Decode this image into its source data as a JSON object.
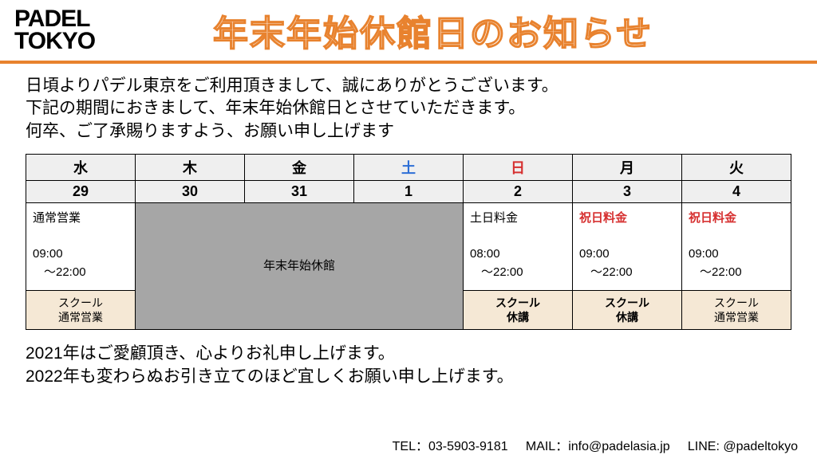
{
  "logo": {
    "line1": "PADEL",
    "line2": "TOKYO"
  },
  "title": "年末年始休館日のお知らせ",
  "intro": {
    "l1": "日頃よりパデル東京をご利用頂きまして、誠にありがとうございます。",
    "l2": "下記の期間におきまして、年末年始休館日とさせていただきます。",
    "l3": "何卒、ご了承賜りますよう、お願い申し上げます"
  },
  "days": [
    "水",
    "木",
    "金",
    "土",
    "日",
    "月",
    "火"
  ],
  "dates": [
    "29",
    "30",
    "31",
    "1",
    "2",
    "3",
    "4"
  ],
  "cells": {
    "c29": {
      "h": "通常営業",
      "t1": "09:00",
      "t2": "～22:00"
    },
    "closed": "年末年始休館",
    "c2": {
      "h": "土日料金",
      "t1": "08:00",
      "t2": "～22:00"
    },
    "c3": {
      "h": "祝日料金",
      "t1": "09:00",
      "t2": "～22:00"
    },
    "c4": {
      "h": "祝日料金",
      "t1": "09:00",
      "t2": "～22:00"
    }
  },
  "school": {
    "s29": "スクール\n通常営業",
    "s2": "スクール\n休講",
    "s3": "スクール\n休講",
    "s4": "スクール\n通常営業"
  },
  "outro": {
    "l1": "2021年はご愛顧頂き、心よりお礼申し上げます。",
    "l2": "2022年も変わらぬお引き立てのほど宜しくお願い申し上げます。"
  },
  "footer": {
    "tel_label": "TEL：",
    "tel": "03-5903-9181",
    "mail_label": "MAIL：",
    "mail": "info@padelasia.jp",
    "line_label": "LINE: ",
    "line": "@padeltokyo"
  },
  "colors": {
    "accent": "#e8822e",
    "gray_bg": "#efefef",
    "closed_bg": "#a6a6a6",
    "school_bg": "#f5e8d5",
    "sat": "#2e6fd6",
    "sun": "#d63030"
  }
}
